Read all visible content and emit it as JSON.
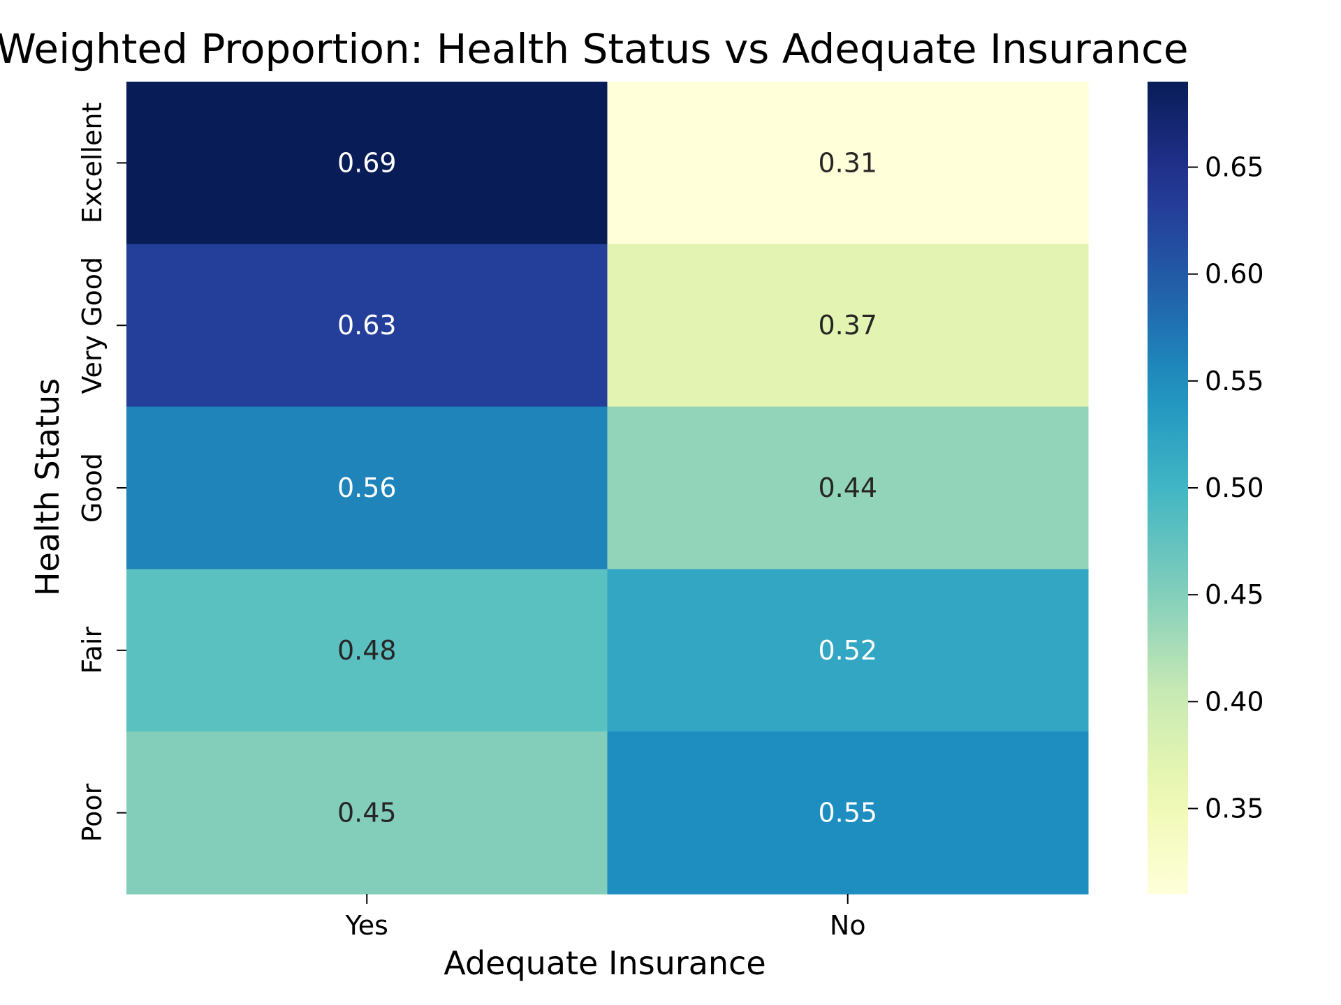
{
  "chart_data": {
    "type": "heatmap",
    "title": "Weighted Proportion: Health Status vs Adequate Insurance",
    "xlabel": "Adequate Insurance",
    "ylabel": "Health Status",
    "x_categories": [
      "Yes",
      "No"
    ],
    "y_categories": [
      "Excellent",
      "Very Good",
      "Good",
      "Fair",
      "Poor"
    ],
    "values": [
      [
        0.69,
        0.31
      ],
      [
        0.63,
        0.37
      ],
      [
        0.56,
        0.44
      ],
      [
        0.48,
        0.52
      ],
      [
        0.45,
        0.55
      ]
    ],
    "cell_labels": [
      [
        "0.69",
        "0.31"
      ],
      [
        "0.63",
        "0.37"
      ],
      [
        "0.56",
        "0.44"
      ],
      [
        "0.48",
        "0.52"
      ],
      [
        "0.45",
        "0.55"
      ]
    ],
    "colormap": "YlGnBu",
    "colorbar": {
      "range": [
        0.31,
        0.69
      ],
      "ticks": [
        0.35,
        0.4,
        0.45,
        0.5,
        0.55,
        0.6,
        0.65
      ],
      "tick_labels": [
        "0.35",
        "0.40",
        "0.45",
        "0.50",
        "0.55",
        "0.60",
        "0.65"
      ]
    },
    "grid": false,
    "legend": "colorbar-right"
  }
}
